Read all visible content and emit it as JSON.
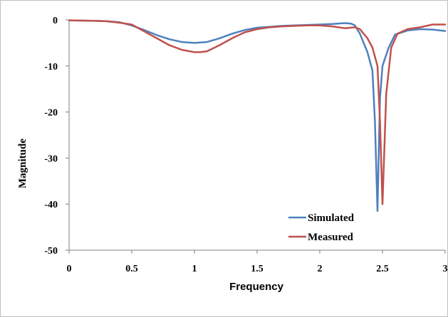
{
  "chart_data": {
    "type": "line",
    "title": "",
    "xlabel": "Frequency",
    "ylabel": "Magnitude",
    "xlim": [
      0,
      3
    ],
    "ylim": [
      -50,
      0
    ],
    "xticks": [
      0,
      0.5,
      1,
      1.5,
      2,
      2.5,
      3
    ],
    "xtick_labels": [
      "0",
      "0.5",
      "1",
      "1.5",
      "2",
      "2.5",
      "3"
    ],
    "yticks": [
      0,
      -10,
      -20,
      -30,
      -40,
      -50
    ],
    "ytick_labels": [
      "0",
      "-10",
      "-20",
      "-30",
      "-40",
      "-50"
    ],
    "grid": false,
    "legend_position": "bottom-right",
    "series": [
      {
        "name": "Simulated",
        "color": "#4f81bd",
        "x": [
          0,
          0.2,
          0.3,
          0.4,
          0.5,
          0.6,
          0.7,
          0.8,
          0.9,
          1.0,
          1.1,
          1.2,
          1.3,
          1.4,
          1.5,
          1.6,
          1.7,
          1.8,
          1.9,
          2.0,
          2.1,
          2.2,
          2.25,
          2.28,
          2.32,
          2.38,
          2.42,
          2.44,
          2.46,
          2.48,
          2.5,
          2.55,
          2.6,
          2.7,
          2.8,
          2.9,
          3.0
        ],
        "y": [
          -0.1,
          -0.2,
          -0.3,
          -0.5,
          -1.2,
          -2.2,
          -3.3,
          -4.2,
          -4.8,
          -5.0,
          -4.8,
          -4.0,
          -3.0,
          -2.2,
          -1.7,
          -1.5,
          -1.3,
          -1.2,
          -1.1,
          -1.0,
          -0.9,
          -0.7,
          -0.8,
          -1.2,
          -3.0,
          -7.0,
          -11.0,
          -22.0,
          -41.5,
          -17.0,
          -10.0,
          -6.0,
          -3.2,
          -2.3,
          -2.0,
          -2.1,
          -2.4
        ]
      },
      {
        "name": "Measured",
        "color": "#c0504d",
        "x": [
          0,
          0.2,
          0.3,
          0.4,
          0.5,
          0.6,
          0.7,
          0.8,
          0.9,
          1.0,
          1.05,
          1.1,
          1.2,
          1.3,
          1.4,
          1.5,
          1.6,
          1.7,
          1.8,
          1.9,
          2.0,
          2.1,
          2.2,
          2.28,
          2.32,
          2.38,
          2.42,
          2.46,
          2.48,
          2.5,
          2.53,
          2.57,
          2.62,
          2.7,
          2.8,
          2.9,
          3.0
        ],
        "y": [
          -0.1,
          -0.2,
          -0.3,
          -0.6,
          -1.0,
          -2.5,
          -4.0,
          -5.5,
          -6.5,
          -7.0,
          -7.0,
          -6.8,
          -5.5,
          -4.0,
          -2.7,
          -2.0,
          -1.6,
          -1.4,
          -1.3,
          -1.2,
          -1.2,
          -1.4,
          -1.8,
          -1.6,
          -2.0,
          -4.0,
          -6.0,
          -10.0,
          -22.0,
          -40.0,
          -16.0,
          -6.0,
          -3.0,
          -2.0,
          -1.6,
          -1.0,
          -1.0
        ]
      }
    ]
  }
}
